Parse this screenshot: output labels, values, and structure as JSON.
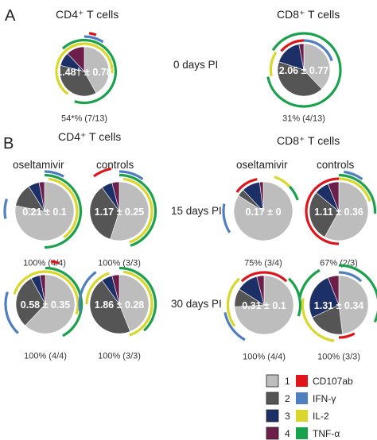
{
  "colors": {
    "p1": "#bdbdbd",
    "p2": "#555555",
    "p3": "#1c2f66",
    "p4": "#6b1f4a",
    "CD107ab": "#e0141b",
    "IFN-γ": "#4f7fc0",
    "IL-2": "#d9d82a",
    "TNF-α": "#1aa14c"
  },
  "labels": {
    "panel_a": "A",
    "panel_b": "B",
    "cd4_a": "CD4⁺ T cells",
    "cd8_a": "CD8⁺ T cells",
    "cd4_b": "CD4⁺ T cells",
    "cd8_b": "CD8⁺ T cells",
    "day0": "0 days PI",
    "day15": "15 days PI",
    "day30": "30 days PI",
    "oselt_cd4": "oseltamivir",
    "ctrl_cd4": "controls",
    "oselt_cd8": "oseltamivir",
    "ctrl_cd8": "controls"
  },
  "legend": {
    "boxes": [
      {
        "num": "1",
        "color": "p1"
      },
      {
        "num": "2",
        "color": "p2"
      },
      {
        "num": "3",
        "color": "p3"
      },
      {
        "num": "4",
        "color": "p4"
      }
    ],
    "functions": [
      {
        "name": "CD107ab",
        "color": "CD107ab"
      },
      {
        "name": "IFN-γ",
        "color": "IFN-γ"
      },
      {
        "name": "IL-2",
        "color": "IL-2"
      },
      {
        "name": "TNF-α",
        "color": "TNF-α"
      }
    ]
  },
  "chart_data": [
    {
      "type": "pie",
      "id": "a_cd4_d0",
      "label": "1.48† ± 0.78",
      "footer": "54*% (7/13)",
      "slices": [
        {
          "cat": "1",
          "value": 0.42
        },
        {
          "cat": "2",
          "value": 0.37
        },
        {
          "cat": "3",
          "value": 0.09
        },
        {
          "cat": "4",
          "value": 0.12
        }
      ],
      "arcs": [
        {
          "fn": "IL-2",
          "ring": 1,
          "start": 0.6,
          "end": 1.0
        },
        {
          "fn": "IL-2",
          "ring": 1,
          "start": 0.0,
          "end": 0.26
        },
        {
          "fn": "TNF-α",
          "ring": 2,
          "start": 0.0,
          "end": 0.55
        },
        {
          "fn": "TNF-α",
          "ring": 2,
          "start": 0.88,
          "end": 1.0
        },
        {
          "fn": "IFN-γ",
          "ring": 3,
          "start": 0.0,
          "end": 0.09
        },
        {
          "fn": "CD107ab",
          "ring": 4,
          "start": 0.02,
          "end": 0.05
        }
      ]
    },
    {
      "type": "pie",
      "id": "a_cd8_d0",
      "label": "2.06 ± 0.77",
      "footer": "31% (4/13)",
      "slices": [
        {
          "cat": "1",
          "value": 0.38
        },
        {
          "cat": "2",
          "value": 0.42
        },
        {
          "cat": "3",
          "value": 0.17
        },
        {
          "cat": "4",
          "value": 0.03
        }
      ],
      "arcs": [
        {
          "fn": "CD107ab",
          "ring": 1,
          "start": 0.86,
          "end": 1.0
        },
        {
          "fn": "IFN-γ",
          "ring": 1,
          "start": 0.0,
          "end": 0.2
        },
        {
          "fn": "IL-2",
          "ring": 2,
          "start": 0.72,
          "end": 0.84
        },
        {
          "fn": "TNF-α",
          "ring": 3,
          "start": 0.0,
          "end": 0.72
        },
        {
          "fn": "TNF-α",
          "ring": 3,
          "start": 0.84,
          "end": 1.0
        }
      ]
    },
    {
      "type": "pie",
      "id": "b_cd4_ose_d15",
      "label": "0.21 ± 0.1",
      "footer": "100% (4/4)",
      "slices": [
        {
          "cat": "1",
          "value": 0.78
        },
        {
          "cat": "2",
          "value": 0.13
        },
        {
          "cat": "3",
          "value": 0.06
        },
        {
          "cat": "4",
          "value": 0.03
        }
      ],
      "arcs": [
        {
          "fn": "IL-2",
          "ring": 1,
          "start": 0.02,
          "end": 0.4
        },
        {
          "fn": "TNF-α",
          "ring": 2,
          "start": 0.0,
          "end": 0.5
        },
        {
          "fn": "IFN-γ",
          "ring": 3,
          "start": 0.0,
          "end": 0.08
        },
        {
          "fn": "IFN-γ",
          "ring": 3,
          "start": 0.72,
          "end": 0.8
        }
      ]
    },
    {
      "type": "pie",
      "id": "b_cd4_ctrl_d15",
      "label": "1.17 ± 0.25",
      "footer": "100% (3/3)",
      "slices": [
        {
          "cat": "1",
          "value": 0.55
        },
        {
          "cat": "2",
          "value": 0.35
        },
        {
          "cat": "3",
          "value": 0.06
        },
        {
          "cat": "4",
          "value": 0.04
        }
      ],
      "arcs": [
        {
          "fn": "IL-2",
          "ring": 1,
          "start": 0.02,
          "end": 0.45
        },
        {
          "fn": "TNF-α",
          "ring": 2,
          "start": 0.0,
          "end": 0.45
        },
        {
          "fn": "IFN-γ",
          "ring": 3,
          "start": 0.0,
          "end": 0.1
        },
        {
          "fn": "CD107ab",
          "ring": 4,
          "start": 0.9,
          "end": 0.97
        }
      ]
    },
    {
      "type": "pie",
      "id": "b_cd8_ose_d15",
      "label": "0.17 ± 0",
      "footer": "75% (3/4)",
      "slices": [
        {
          "cat": "1",
          "value": 0.84
        },
        {
          "cat": "2",
          "value": 0.04
        },
        {
          "cat": "3",
          "value": 0.1
        },
        {
          "cat": "4",
          "value": 0.02
        }
      ],
      "arcs": [
        {
          "fn": "CD107ab",
          "ring": 1,
          "start": 0.85,
          "end": 0.97
        },
        {
          "fn": "IL-2",
          "ring": 2,
          "start": 0.05,
          "end": 0.13
        },
        {
          "fn": "TNF-α",
          "ring": 2,
          "start": 0.13,
          "end": 0.2
        },
        {
          "fn": "IFN-γ",
          "ring": 3,
          "start": 0.66,
          "end": 0.78
        }
      ]
    },
    {
      "type": "pie",
      "id": "b_cd8_ctrl_d15",
      "label": "1.11 ± 0.36",
      "footer": "67% (2/3)",
      "slices": [
        {
          "cat": "1",
          "value": 0.58
        },
        {
          "cat": "2",
          "value": 0.28
        },
        {
          "cat": "3",
          "value": 0.08
        },
        {
          "cat": "4",
          "value": 0.06
        }
      ],
      "arcs": [
        {
          "fn": "CD107ab",
          "ring": 1,
          "start": 0.5,
          "end": 1.0
        },
        {
          "fn": "IL-2",
          "ring": 1,
          "start": 0.0,
          "end": 0.2
        },
        {
          "fn": "TNF-α",
          "ring": 2,
          "start": 0.0,
          "end": 0.26
        },
        {
          "fn": "IFN-γ",
          "ring": 3,
          "start": 0.02,
          "end": 0.1
        }
      ]
    },
    {
      "type": "pie",
      "id": "b_cd4_ose_d30",
      "label": "0.58 ± 0.35",
      "footer": "100% (4/4)",
      "slices": [
        {
          "cat": "1",
          "value": 0.62
        },
        {
          "cat": "2",
          "value": 0.3
        },
        {
          "cat": "3",
          "value": 0.05
        },
        {
          "cat": "4",
          "value": 0.03
        }
      ],
      "arcs": [
        {
          "fn": "IL-2",
          "ring": 1,
          "start": 0.8,
          "end": 1.0
        },
        {
          "fn": "IL-2",
          "ring": 1,
          "start": 0.0,
          "end": 0.3
        },
        {
          "fn": "TNF-α",
          "ring": 2,
          "start": 0.0,
          "end": 0.42
        },
        {
          "fn": "IFN-γ",
          "ring": 3,
          "start": 0.62,
          "end": 0.8
        },
        {
          "fn": "CD107ab",
          "ring": 4,
          "start": 0.02,
          "end": 0.05
        }
      ]
    },
    {
      "type": "pie",
      "id": "b_cd4_ctrl_d30",
      "label": "1.86 ± 0.28",
      "footer": "100% (3/3)",
      "slices": [
        {
          "cat": "1",
          "value": 0.44
        },
        {
          "cat": "2",
          "value": 0.46
        },
        {
          "cat": "3",
          "value": 0.06
        },
        {
          "cat": "4",
          "value": 0.04
        }
      ],
      "arcs": [
        {
          "fn": "IL-2",
          "ring": 1,
          "start": 0.02,
          "end": 0.45
        },
        {
          "fn": "IL-2",
          "ring": 1,
          "start": 0.75,
          "end": 0.95
        },
        {
          "fn": "TNF-α",
          "ring": 2,
          "start": 0.0,
          "end": 0.38
        },
        {
          "fn": "IFN-γ",
          "ring": 3,
          "start": 0.72,
          "end": 0.9
        }
      ]
    },
    {
      "type": "pie",
      "id": "b_cd8_ose_d30",
      "label": "0.31 ± 0.1",
      "footer": "100% (4/4)",
      "slices": [
        {
          "cat": "1",
          "value": 0.74
        },
        {
          "cat": "2",
          "value": 0.1
        },
        {
          "cat": "3",
          "value": 0.12
        },
        {
          "cat": "4",
          "value": 0.04
        }
      ],
      "arcs": [
        {
          "fn": "CD107ab",
          "ring": 1,
          "start": 0.88,
          "end": 1.0
        },
        {
          "fn": "CD107ab",
          "ring": 1,
          "start": 0.0,
          "end": 0.12
        },
        {
          "fn": "IL-2",
          "ring": 2,
          "start": 0.65,
          "end": 0.88
        },
        {
          "fn": "TNF-α",
          "ring": 2,
          "start": 0.12,
          "end": 0.3
        },
        {
          "fn": "IFN-γ",
          "ring": 3,
          "start": 0.58,
          "end": 0.72
        }
      ]
    },
    {
      "type": "pie",
      "id": "b_cd8_ctrl_d30",
      "label": "1.31 ± 0.34",
      "footer": "100% (3/3)",
      "slices": [
        {
          "cat": "1",
          "value": 0.48
        },
        {
          "cat": "2",
          "value": 0.2
        },
        {
          "cat": "3",
          "value": 0.26
        },
        {
          "cat": "4",
          "value": 0.06
        }
      ],
      "arcs": [
        {
          "fn": "CD107ab",
          "ring": 1,
          "start": 0.42,
          "end": 0.5
        },
        {
          "fn": "IFN-γ",
          "ring": 1,
          "start": 0.0,
          "end": 0.12
        },
        {
          "fn": "IL-2",
          "ring": 2,
          "start": 0.52,
          "end": 0.78
        },
        {
          "fn": "TNF-α",
          "ring": 3,
          "start": 0.0,
          "end": 0.32
        },
        {
          "fn": "TNF-α",
          "ring": 3,
          "start": 0.78,
          "end": 0.92
        }
      ]
    }
  ]
}
